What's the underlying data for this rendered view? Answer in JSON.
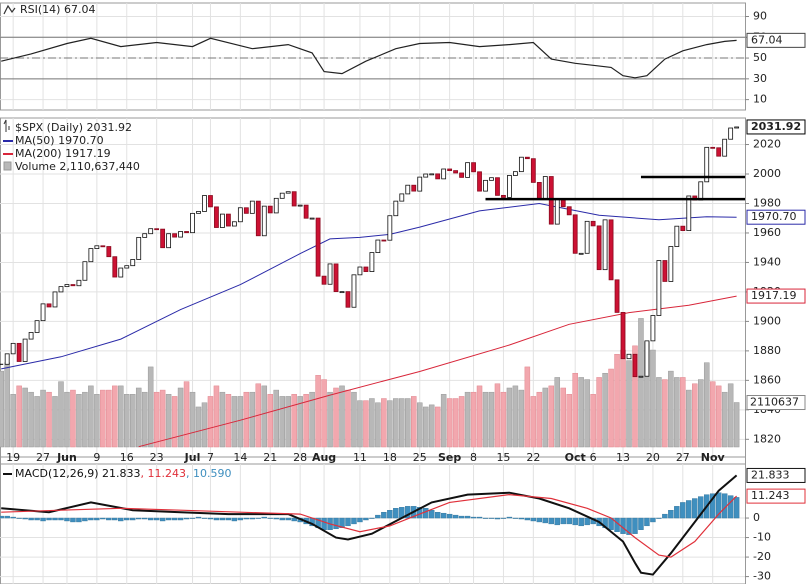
{
  "chart_data": [
    {
      "type": "line",
      "title": "RSI(14) 67.04",
      "color": "#222222",
      "tag": "67.04",
      "x": [
        0,
        5,
        11,
        15,
        20,
        26,
        32,
        35,
        42,
        48,
        52,
        54,
        57,
        61,
        66,
        70,
        75,
        80,
        85,
        89,
        92,
        96,
        99,
        102,
        104,
        106,
        108,
        111,
        114,
        118,
        121,
        123
      ],
      "values": [
        47,
        54,
        64,
        69,
        61,
        65,
        61,
        69,
        59,
        63,
        55,
        37,
        35,
        47,
        59,
        64,
        65,
        61,
        63,
        65,
        49,
        45,
        43,
        41,
        33,
        31,
        33,
        49,
        57,
        63,
        66,
        67.04
      ],
      "ylim": [
        0,
        103
      ],
      "yticks": [
        10,
        30,
        50,
        70,
        90
      ],
      "ref_lines": [
        30,
        50,
        70
      ]
    },
    {
      "type": "candlestick",
      "title": "$SPX (Daily) 2031.92",
      "tag": "2031.92",
      "xlim": [
        -0.2,
        124.4
      ],
      "xticks": [
        {
          "value": 2,
          "label": "19"
        },
        {
          "value": 7,
          "label": "27"
        },
        {
          "value": 11,
          "label": "Jun"
        },
        {
          "value": 16,
          "label": "9"
        },
        {
          "value": 21,
          "label": "16"
        },
        {
          "value": 26,
          "label": "23"
        },
        {
          "value": 32,
          "label": "Jul"
        },
        {
          "value": 35,
          "label": "7"
        },
        {
          "value": 40,
          "label": "14"
        },
        {
          "value": 45,
          "label": "21"
        },
        {
          "value": 50,
          "label": "28"
        },
        {
          "value": 54,
          "label": "Aug"
        },
        {
          "value": 60,
          "label": "11"
        },
        {
          "value": 65,
          "label": "18"
        },
        {
          "value": 70,
          "label": "25"
        },
        {
          "value": 75,
          "label": "Sep"
        },
        {
          "value": 79,
          "label": "8"
        },
        {
          "value": 84,
          "label": "15"
        },
        {
          "value": 89,
          "label": "22"
        },
        {
          "value": 96,
          "label": "Oct"
        },
        {
          "value": 99,
          "label": "6"
        },
        {
          "value": 104,
          "label": "13"
        },
        {
          "value": 109,
          "label": "20"
        },
        {
          "value": 114,
          "label": "27"
        },
        {
          "value": 119,
          "label": "Nov"
        }
      ],
      "close": [
        1870.9,
        1878.0,
        1885.1,
        1872.8,
        1888.0,
        1892.5,
        1900.5,
        1911.9,
        1909.8,
        1920.0,
        1923.6,
        1925.0,
        1924.2,
        1927.9,
        1940.5,
        1949.4,
        1951.3,
        1950.8,
        1943.9,
        1930.1,
        1936.2,
        1937.8,
        1942.0,
        1957.0,
        1959.5,
        1962.9,
        1962.6,
        1950.0,
        1959.5,
        1957.2,
        1961.0,
        1960.2,
        1973.3,
        1974.6,
        1985.4,
        1977.7,
        1963.7,
        1972.8,
        1964.7,
        1967.6,
        1977.1,
        1973.3,
        1981.6,
        1958.1,
        1978.2,
        1973.6,
        1983.5,
        1987.0,
        1988.0,
        1978.3,
        1978.9,
        1970.0,
        1970.1,
        1930.7,
        1925.2,
        1939.0,
        1920.2,
        1920.2,
        1909.6,
        1931.6,
        1936.9,
        1933.8,
        1946.7,
        1955.2,
        1955.1,
        1971.7,
        1981.6,
        1986.5,
        1992.4,
        1988.4,
        1997.9,
        2000.0,
        2000.1,
        1996.7,
        2003.4,
        2002.3,
        2000.7,
        1997.7,
        2007.7,
        2001.5,
        1988.4,
        1995.7,
        1997.5,
        1985.5,
        1984.1,
        1999.0,
        2001.6,
        2011.4,
        2010.4,
        1994.3,
        1982.8,
        1998.3,
        1966.0,
        1982.9,
        1977.8,
        1972.3,
        1946.2,
        1946.2,
        1967.9,
        1964.8,
        1935.1,
        1968.9,
        1928.2,
        1906.1,
        1874.7,
        1877.7,
        1862.5,
        1862.8,
        1886.8,
        1904.0,
        1941.3,
        1927.1,
        1950.8,
        1964.6,
        1961.6,
        1985.1,
        1982.3,
        1994.7,
        2018.1,
        2017.8,
        2012.1,
        2023.6,
        2031.2,
        2031.92
      ],
      "up_color": "#ffffff",
      "down_color": "#cc1133",
      "ylim": [
        1808,
        2038
      ],
      "yticks": [
        1820,
        1840,
        1860,
        1880,
        1900,
        1920,
        1940,
        1960,
        1980,
        2000,
        2020
      ],
      "series": [
        {
          "name": "MA(50) 1970.70",
          "color": "#2a2aa8",
          "tag": "1970.70",
          "x": [
            0,
            10,
            20,
            30,
            40,
            50,
            55,
            60,
            65,
            70,
            80,
            90,
            95,
            100,
            110,
            118,
            123
          ],
          "values": [
            1867.8,
            1876,
            1888,
            1908,
            1925,
            1946,
            1956,
            1957,
            1959,
            1964,
            1975,
            1980,
            1976,
            1972,
            1969,
            1971,
            1970.7
          ]
        },
        {
          "name": "MA(200) 1917.19",
          "color": "#d8263a",
          "tag": "1917.19",
          "x": [
            23,
            40,
            55,
            70,
            85,
            95,
            105,
            115,
            123
          ],
          "values": [
            1815,
            1833,
            1850,
            1866,
            1884,
            1898,
            1906,
            1911,
            1917.19
          ]
        }
      ],
      "volume": {
        "name": "Volume 2,110,637,440",
        "tag": "2110637",
        "up_color": "#b8b8b8",
        "down_color": "#f2a7ae",
        "vlim": [
          0,
          6500000000.0
        ],
        "values": [
          3600000000.0,
          4000000000.0,
          2500000000.0,
          2900000000.0,
          2800000000.0,
          2600000000.0,
          2400000000.0,
          2700000000.0,
          2600000000.0,
          2400000000.0,
          3100000000.0,
          2600000000.0,
          2700000000.0,
          2500000000.0,
          2600000000.0,
          2900000000.0,
          2500000000.0,
          2700000000.0,
          2700000000.0,
          2900000000.0,
          2900000000.0,
          2500000000.0,
          2500000000.0,
          2800000000.0,
          2600000000.0,
          3800000000.0,
          2600000000.0,
          2700000000.0,
          2500000000.0,
          2400000000.0,
          2800000000.0,
          3100000000.0,
          2600000000.0,
          1900000000.0,
          2100000000.0,
          2400000000.0,
          2900000000.0,
          2600000000.0,
          2500000000.0,
          2400000000.0,
          2400000000.0,
          2600000000.0,
          2600000000.0,
          3000000000.0,
          2900000000.0,
          2500000000.0,
          2700000000.0,
          2400000000.0,
          2400000000.0,
          2500000000.0,
          2400000000.0,
          2500000000.0,
          2600000000.0,
          3400000000.0,
          3200000000.0,
          2600000000.0,
          2800000000.0,
          2900000000.0,
          2700000000.0,
          2600000000.0,
          2200000000.0,
          2200000000.0,
          2300000000.0,
          2100000000.0,
          2300000000.0,
          2200000000.0,
          2300000000.0,
          2300000000.0,
          2300000000.0,
          2400000000.0,
          2100000000.0,
          1900000000.0,
          2000000000.0,
          1900000000.0,
          2500000000.0,
          2300000000.0,
          2300000000.0,
          2400000000.0,
          2600000000.0,
          2600000000.0,
          2900000000.0,
          2600000000.0,
          2600000000.0,
          3000000000.0,
          2600000000.0,
          2800000000.0,
          2900000000.0,
          2700000000.0,
          3800000000.0,
          2400000000.0,
          2600000000.0,
          2800000000.0,
          2900000000.0,
          3300000000.0,
          2800000000.0,
          2500000000.0,
          3500000000.0,
          3300000000.0,
          3200000000.0,
          2500000000.0,
          3300000000.0,
          3500000000.0,
          3700000000.0,
          4400000000.0,
          4600000000.0,
          4100000000.0,
          4800000000.0,
          6100000000.0,
          5000000000.0,
          4600000000.0,
          3300000000.0,
          3200000000.0,
          3600000000.0,
          3300000000.0,
          3300000000.0,
          2700000000.0,
          3000000000.0,
          3200000000.0,
          4000000000.0,
          3100000000.0,
          2900000000.0,
          2600000000.0,
          3000000000.0,
          2110637440
        ]
      },
      "levels": [
        {
          "value": 1998,
          "x": [
            107,
            124.4
          ]
        },
        {
          "value": 1983,
          "x": [
            81,
            124.4
          ]
        }
      ]
    },
    {
      "type": "macd",
      "legend": [
        "MACD(12,26,9) 21.833",
        ", 11.243",
        ", 10.590"
      ],
      "ylim": [
        -33.8,
        27.7
      ],
      "yticks": [
        -30,
        -20,
        -10,
        0
      ],
      "series": [
        {
          "color": "#111111",
          "tag": "21.833",
          "x": [
            0,
            8,
            15,
            22,
            30,
            38,
            48,
            52,
            56,
            58,
            62,
            67,
            72,
            78,
            85,
            90,
            95,
            100,
            104,
            106,
            107,
            109,
            112,
            116,
            120,
            123
          ],
          "values": [
            5,
            3,
            8,
            4,
            3,
            2,
            2,
            -3,
            -10,
            -11,
            -8,
            0,
            8,
            12,
            13,
            10,
            5,
            -2,
            -12,
            -23,
            -28,
            -29,
            -18,
            -2,
            14,
            21.833
          ]
        },
        {
          "color": "#e0303a",
          "tag": "11.243",
          "x": [
            0,
            10,
            20,
            30,
            40,
            50,
            55,
            60,
            65,
            70,
            75,
            85,
            92,
            98,
            102,
            106,
            110,
            112,
            116,
            120,
            123
          ],
          "values": [
            3,
            4,
            5,
            4,
            3,
            2,
            -3,
            -7,
            -4,
            2,
            8,
            12,
            10,
            5,
            0,
            -10,
            -19,
            -20,
            -12,
            2,
            11.243
          ]
        }
      ],
      "histogram": {
        "color": "#3f8fbf",
        "values": [
          1,
          1,
          0.5,
          0,
          -0.5,
          -1,
          -1,
          -1.5,
          -1,
          -1,
          -1,
          -1.5,
          -2,
          -2,
          -1.5,
          -1,
          -1,
          -0.5,
          -1,
          -1,
          -1.5,
          -1,
          -1,
          -0.5,
          -0.5,
          -1,
          -1,
          -1.5,
          -1,
          -1,
          -1,
          -0.5,
          0,
          0.5,
          0,
          -0.5,
          -1,
          -1,
          -1,
          -1.5,
          -1,
          -0.5,
          -0.5,
          0,
          0.5,
          0,
          -0.5,
          -1,
          -1,
          -1.5,
          -2,
          -3,
          -4,
          -5,
          -6,
          -6,
          -5.5,
          -5,
          -4,
          -3,
          -2,
          -1,
          0,
          1.5,
          3,
          4,
          5,
          5.5,
          6,
          6,
          5.5,
          5,
          4,
          3,
          2.5,
          2,
          1.5,
          1,
          1,
          0.5,
          0.5,
          0,
          0,
          -0.5,
          0,
          0.5,
          0,
          -0.5,
          -1,
          -1.5,
          -2,
          -2.5,
          -3,
          -3.5,
          -3,
          -3,
          -3.5,
          -4,
          -3.5,
          -3,
          -4,
          -5,
          -6,
          -7,
          -8,
          -8.5,
          -8,
          -6,
          -4,
          -2,
          0,
          2,
          4,
          6,
          8,
          9,
          10,
          11,
          12,
          12.5,
          13,
          12.5,
          11.5,
          10.59
        ]
      }
    }
  ]
}
